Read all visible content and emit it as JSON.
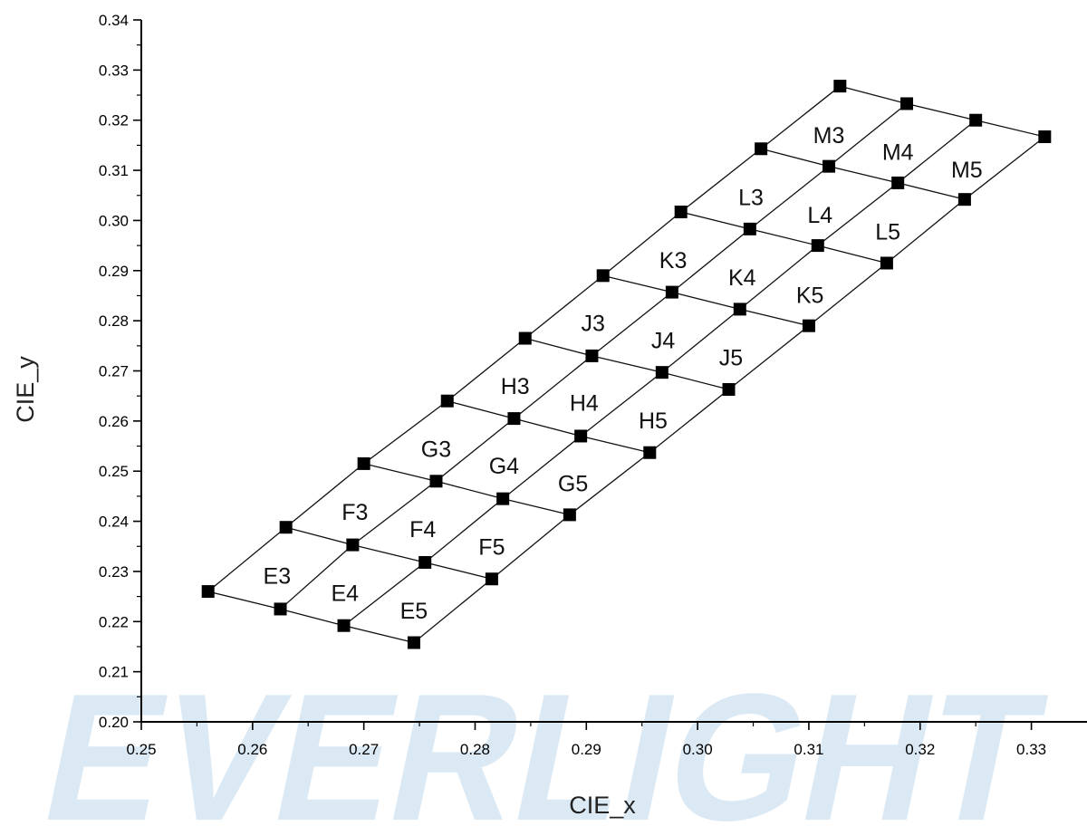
{
  "chart_data": {
    "type": "scatter",
    "title": "",
    "xlabel": "CIE_x",
    "ylabel": "CIE_y",
    "xlim": [
      0.25,
      0.335
    ],
    "ylim": [
      0.2,
      0.34
    ],
    "x_ticks": [
      "0.25",
      "0.26",
      "0.27",
      "0.28",
      "0.29",
      "0.30",
      "0.31",
      "0.32",
      "0.33"
    ],
    "y_ticks": [
      "0.20",
      "0.21",
      "0.22",
      "0.23",
      "0.24",
      "0.25",
      "0.26",
      "0.27",
      "0.28",
      "0.29",
      "0.30",
      "0.31",
      "0.32",
      "0.33",
      "0.34"
    ],
    "grid": false,
    "watermark": "EVERLIGHT",
    "grid_points": [
      [
        [
          0.256,
          0.226
        ],
        [
          0.2625,
          0.2225
        ],
        [
          0.2682,
          0.2192
        ],
        [
          0.2745,
          0.2158
        ]
      ],
      [
        [
          0.263,
          0.2388
        ],
        [
          0.269,
          0.2353
        ],
        [
          0.2755,
          0.2318
        ],
        [
          0.2815,
          0.2285
        ]
      ],
      [
        [
          0.27,
          0.2515
        ],
        [
          0.2765,
          0.248
        ],
        [
          0.2825,
          0.2445
        ],
        [
          0.2885,
          0.2413
        ]
      ],
      [
        [
          0.2775,
          0.264
        ],
        [
          0.2835,
          0.2605
        ],
        [
          0.2895,
          0.257
        ],
        [
          0.2957,
          0.2537
        ]
      ],
      [
        [
          0.2845,
          0.2765
        ],
        [
          0.2905,
          0.273
        ],
        [
          0.2968,
          0.2697
        ],
        [
          0.3028,
          0.2663
        ]
      ],
      [
        [
          0.2915,
          0.289
        ],
        [
          0.2977,
          0.2857
        ],
        [
          0.3038,
          0.2823
        ],
        [
          0.31,
          0.279
        ]
      ],
      [
        [
          0.2985,
          0.3017
        ],
        [
          0.3047,
          0.2983
        ],
        [
          0.3108,
          0.295
        ],
        [
          0.317,
          0.2915
        ]
      ],
      [
        [
          0.3057,
          0.3143
        ],
        [
          0.3118,
          0.3108
        ],
        [
          0.318,
          0.3075
        ],
        [
          0.324,
          0.3042
        ]
      ],
      [
        [
          0.3128,
          0.3268
        ],
        [
          0.3188,
          0.3233
        ],
        [
          0.325,
          0.32
        ],
        [
          0.3312,
          0.3167
        ]
      ]
    ],
    "bins": [
      {
        "label": "E3",
        "x": 0.2622,
        "y": 0.2292
      },
      {
        "label": "E4",
        "x": 0.2683,
        "y": 0.2257
      },
      {
        "label": "E5",
        "x": 0.2745,
        "y": 0.2222
      },
      {
        "label": "F3",
        "x": 0.2692,
        "y": 0.2419
      },
      {
        "label": "F4",
        "x": 0.2753,
        "y": 0.2385
      },
      {
        "label": "F5",
        "x": 0.2815,
        "y": 0.235
      },
      {
        "label": "G3",
        "x": 0.2765,
        "y": 0.2545
      },
      {
        "label": "G4",
        "x": 0.2826,
        "y": 0.2511
      },
      {
        "label": "G5",
        "x": 0.2888,
        "y": 0.2476
      },
      {
        "label": "H3",
        "x": 0.2836,
        "y": 0.267
      },
      {
        "label": "H4",
        "x": 0.2898,
        "y": 0.2637
      },
      {
        "label": "H5",
        "x": 0.296,
        "y": 0.2602
      },
      {
        "label": "J3",
        "x": 0.2906,
        "y": 0.2796
      },
      {
        "label": "J4",
        "x": 0.2969,
        "y": 0.2761
      },
      {
        "label": "J5",
        "x": 0.303,
        "y": 0.2727
      },
      {
        "label": "K3",
        "x": 0.2978,
        "y": 0.2921
      },
      {
        "label": "K4",
        "x": 0.304,
        "y": 0.2887
      },
      {
        "label": "K5",
        "x": 0.3101,
        "y": 0.2852
      },
      {
        "label": "L3",
        "x": 0.3048,
        "y": 0.3047
      },
      {
        "label": "L4",
        "x": 0.311,
        "y": 0.3012
      },
      {
        "label": "L5",
        "x": 0.3171,
        "y": 0.2978
      },
      {
        "label": "M3",
        "x": 0.3118,
        "y": 0.3171
      },
      {
        "label": "M4",
        "x": 0.318,
        "y": 0.3137
      },
      {
        "label": "M5",
        "x": 0.3242,
        "y": 0.3102
      }
    ]
  }
}
